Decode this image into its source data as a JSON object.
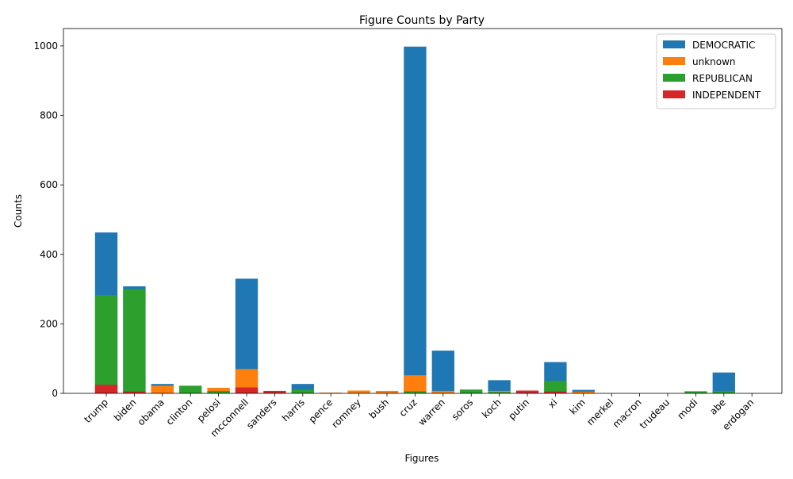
{
  "chart_data": {
    "type": "bar",
    "stacked": true,
    "title": "Figure Counts by Party",
    "xlabel": "Figures",
    "ylabel": "Counts",
    "ylim": [
      0,
      1050
    ],
    "yticks": [
      0,
      200,
      400,
      600,
      800,
      1000
    ],
    "grid": false,
    "legend_position": "top-right",
    "categories": [
      "trump",
      "biden",
      "obama",
      "clinton",
      "pelosi",
      "mcconnell",
      "sanders",
      "harris",
      "pence",
      "romney",
      "bush",
      "cruz",
      "warren",
      "soros",
      "koch",
      "putin",
      "xi",
      "kim",
      "merkel",
      "macron",
      "trudeau",
      "modi",
      "abe",
      "erdogan"
    ],
    "series": [
      {
        "name": "DEMOCRATIC",
        "color": "#1f77b4",
        "values": [
          463,
          308,
          27,
          0,
          0,
          330,
          0,
          27,
          0,
          0,
          0,
          998,
          123,
          0,
          38,
          0,
          90,
          10,
          0,
          0,
          0,
          0,
          60,
          0
        ]
      },
      {
        "name": "unknown",
        "color": "#ff7f0e",
        "values": [
          0,
          0,
          22,
          0,
          16,
          70,
          0,
          0,
          2,
          8,
          7,
          52,
          7,
          0,
          7,
          0,
          0,
          5,
          0,
          0,
          0,
          0,
          0,
          0
        ]
      },
      {
        "name": "REPUBLICAN",
        "color": "#2ca02c",
        "values": [
          283,
          300,
          0,
          22,
          7,
          0,
          0,
          11,
          0,
          0,
          0,
          6,
          0,
          11,
          4,
          0,
          36,
          0,
          0,
          0,
          0,
          6,
          7,
          0
        ]
      },
      {
        "name": "INDEPENDENT",
        "color": "#d62728",
        "values": [
          25,
          6,
          0,
          0,
          0,
          17,
          7,
          0,
          0,
          0,
          0,
          0,
          0,
          0,
          0,
          8,
          6,
          0,
          0,
          0,
          0,
          0,
          0,
          0
        ]
      }
    ]
  }
}
